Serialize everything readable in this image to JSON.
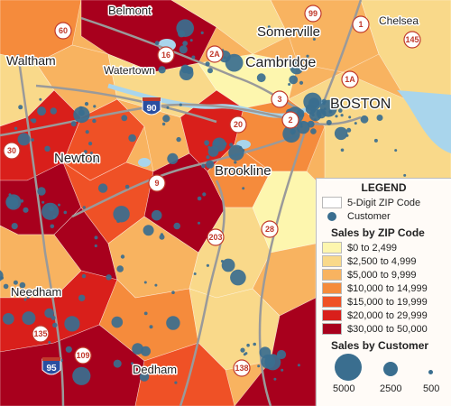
{
  "places": {
    "belmont": "Belmont",
    "somerville": "Somerville",
    "chelsea": "Chelsea",
    "waltham": "Waltham",
    "watertown": "Watertown",
    "cambridge": "Cambridge",
    "boston": "BOSTON",
    "newton": "Newton",
    "brookline": "Brookline",
    "needham": "Needham",
    "dedham": "Dedham"
  },
  "routes": {
    "r60": "60",
    "r99": "99",
    "r1": "1",
    "r145": "145",
    "r16": "16",
    "r2a": "2A",
    "r1a": "1A",
    "r3": "3",
    "r2": "2",
    "r20": "20",
    "r30": "30",
    "r9": "9",
    "r203": "203",
    "r28": "28",
    "r135": "135",
    "r109": "109",
    "r138": "138"
  },
  "interstates": {
    "i90": "90",
    "i95": "95"
  },
  "legend": {
    "title": "LEGEND",
    "zip_layer": "5-Digit ZIP Code",
    "customer_layer": "Customer",
    "sales_zip_title": "Sales by ZIP Code",
    "sales_customer_title": "Sales by Customer",
    "classes": [
      {
        "label": "$0 to 2,499",
        "color": "#fdf6ae"
      },
      {
        "label": "$2,500 to 4,999",
        "color": "#f9d98a"
      },
      {
        "label": "$5,000 to 9,999",
        "color": "#f8b360"
      },
      {
        "label": "$10,000 to 14,999",
        "color": "#f58b3c"
      },
      {
        "label": "$15,000 to 19,999",
        "color": "#ef5126"
      },
      {
        "label": "$20,000 to 29,999",
        "color": "#d91f1b"
      },
      {
        "label": "$30,000 to 50,000",
        "color": "#a8001d"
      }
    ],
    "bubble_sizes": [
      "5000",
      "2500",
      "500"
    ]
  },
  "colors": {
    "customer": "#3a6e8f",
    "water": "#a9d5ec",
    "road": "#9a9a9a"
  }
}
